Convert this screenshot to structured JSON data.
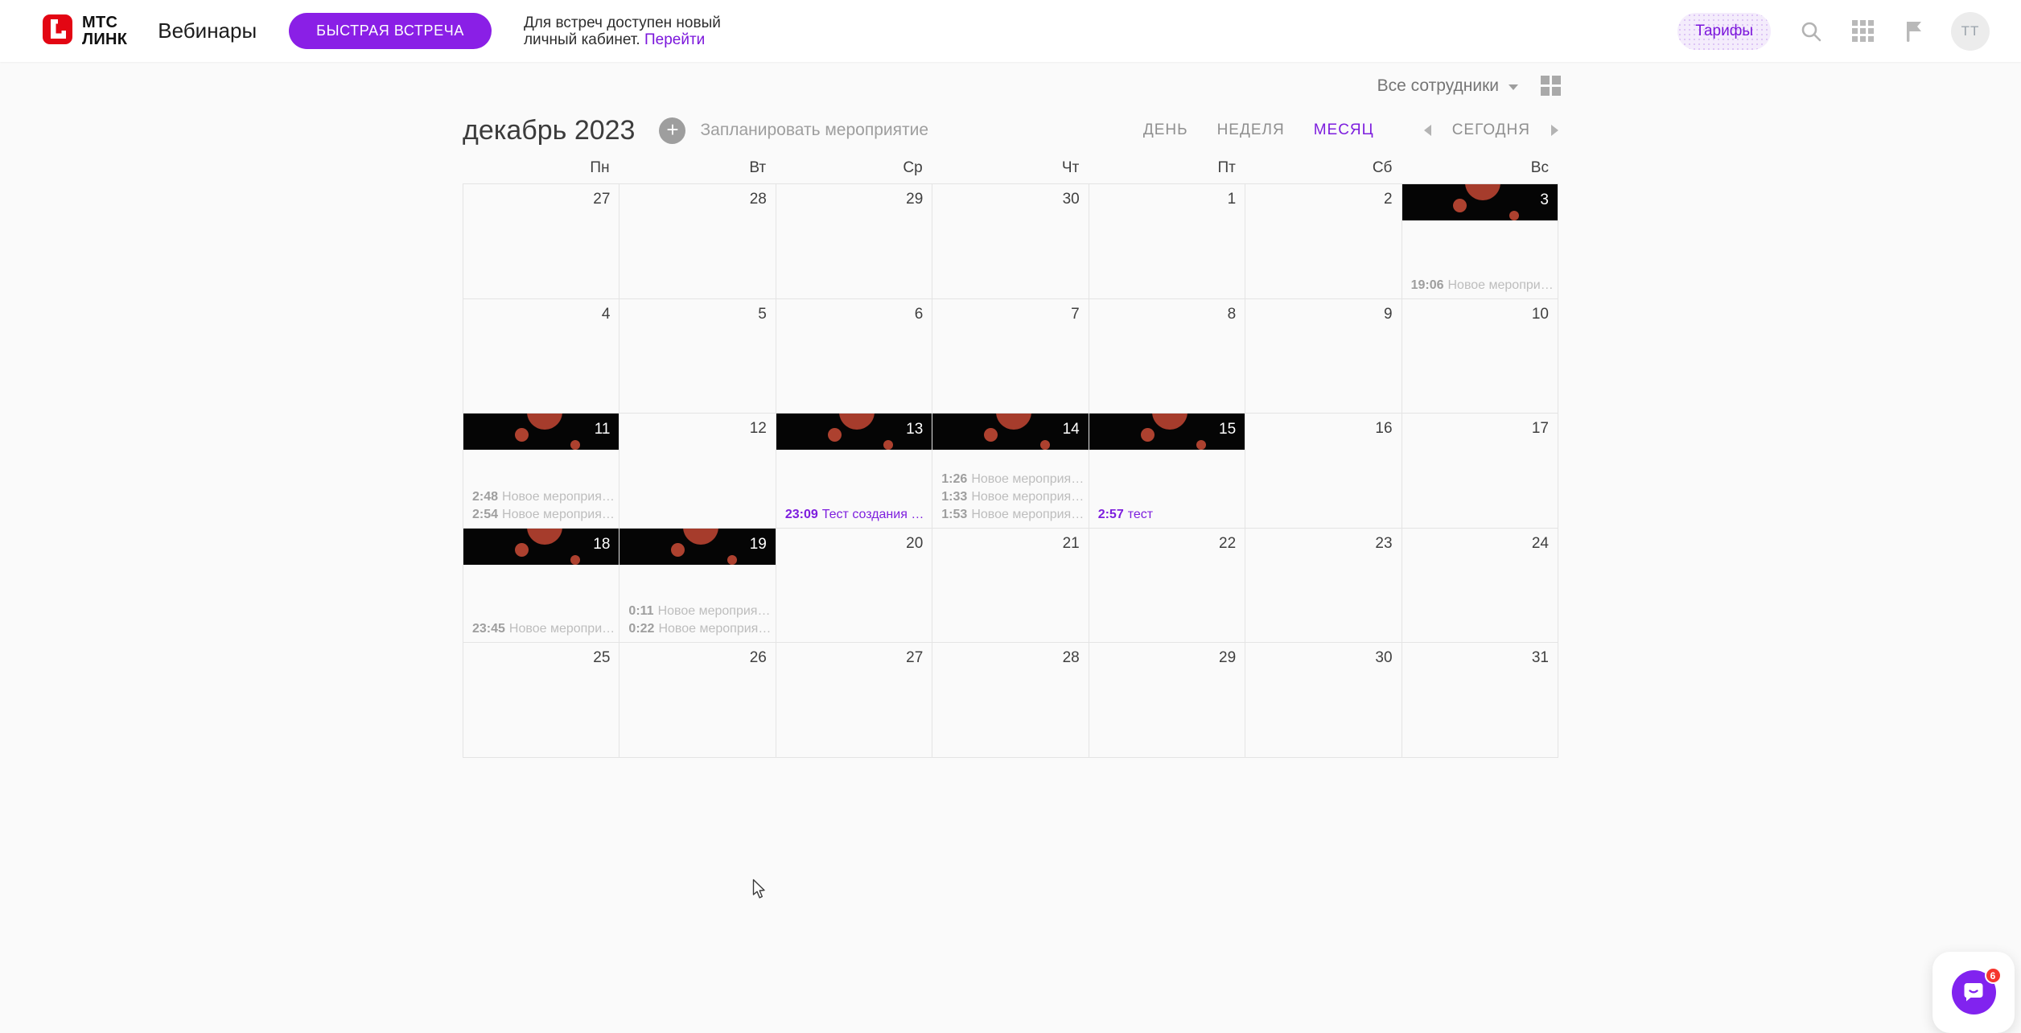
{
  "header": {
    "logo": {
      "line1": "МТС",
      "line2": "ЛИНК"
    },
    "product": "Вебинары",
    "quick_meeting_button": "БЫСТРАЯ ВСТРЕЧА",
    "notice": {
      "line1": "Для встреч доступен новый",
      "line2": "личный кабинет.",
      "link": "Перейти"
    },
    "tariffs_button": "Тарифы",
    "avatar_initials": "TT"
  },
  "toolbar": {
    "employees_filter": "Все сотрудники"
  },
  "calendar": {
    "title": "декабрь 2023",
    "schedule_label": "Запланировать мероприятие",
    "views": [
      {
        "label": "ДЕНЬ",
        "active": false
      },
      {
        "label": "НЕДЕЛЯ",
        "active": false
      },
      {
        "label": "МЕСЯЦ",
        "active": true
      }
    ],
    "today_label": "СЕГОДНЯ",
    "weekday_headers": [
      "Пн",
      "Вт",
      "Ср",
      "Чт",
      "Пт",
      "Сб",
      "Вс"
    ],
    "weeks": [
      [
        {
          "date": "27"
        },
        {
          "date": "28"
        },
        {
          "date": "29"
        },
        {
          "date": "30"
        },
        {
          "date": "1"
        },
        {
          "date": "2"
        },
        {
          "date": "3",
          "banner": true,
          "events": [
            {
              "time": "19:06",
              "title": "Новое меропри…",
              "color": "gray"
            }
          ]
        }
      ],
      [
        {
          "date": "4"
        },
        {
          "date": "5"
        },
        {
          "date": "6"
        },
        {
          "date": "7"
        },
        {
          "date": "8"
        },
        {
          "date": "9"
        },
        {
          "date": "10"
        }
      ],
      [
        {
          "date": "11",
          "banner": true,
          "events": [
            {
              "time": "2:48",
              "title": "Новое мероприя…",
              "color": "gray"
            },
            {
              "time": "2:54",
              "title": "Новое мероприя…",
              "color": "gray"
            }
          ]
        },
        {
          "date": "12"
        },
        {
          "date": "13",
          "banner": true,
          "events": [
            {
              "time": "23:09",
              "title": "Тест создания …",
              "color": "purple"
            }
          ]
        },
        {
          "date": "14",
          "banner": true,
          "events": [
            {
              "time": "1:26",
              "title": "Новое мероприя…",
              "color": "gray"
            },
            {
              "time": "1:33",
              "title": "Новое мероприя…",
              "color": "gray"
            },
            {
              "time": "1:53",
              "title": "Новое мероприя…",
              "color": "gray"
            }
          ]
        },
        {
          "date": "15",
          "banner": true,
          "events": [
            {
              "time": "2:57",
              "title": "тест",
              "color": "purple"
            }
          ]
        },
        {
          "date": "16"
        },
        {
          "date": "17"
        }
      ],
      [
        {
          "date": "18",
          "banner": true,
          "events": [
            {
              "time": "23:45",
              "title": "Новое меропри…",
              "color": "gray"
            }
          ]
        },
        {
          "date": "19",
          "banner": true,
          "events": [
            {
              "time": "0:11",
              "title": "Новое мероприя…",
              "color": "gray"
            },
            {
              "time": "0:22",
              "title": "Новое мероприя…",
              "color": "gray"
            }
          ]
        },
        {
          "date": "20"
        },
        {
          "date": "21"
        },
        {
          "date": "22"
        },
        {
          "date": "23"
        },
        {
          "date": "24"
        }
      ],
      [
        {
          "date": "25"
        },
        {
          "date": "26"
        },
        {
          "date": "27"
        },
        {
          "date": "28"
        },
        {
          "date": "29"
        },
        {
          "date": "30"
        },
        {
          "date": "31"
        }
      ]
    ]
  },
  "chat_widget": {
    "badge": "6"
  },
  "colors": {
    "accent_button": "#8a1fe6",
    "accent_text": "#7d1ede",
    "logo_red": "#e30613",
    "banner_bg": "#050505",
    "banner_circle": "#a63c2c",
    "badge_red": "#f5362e"
  }
}
